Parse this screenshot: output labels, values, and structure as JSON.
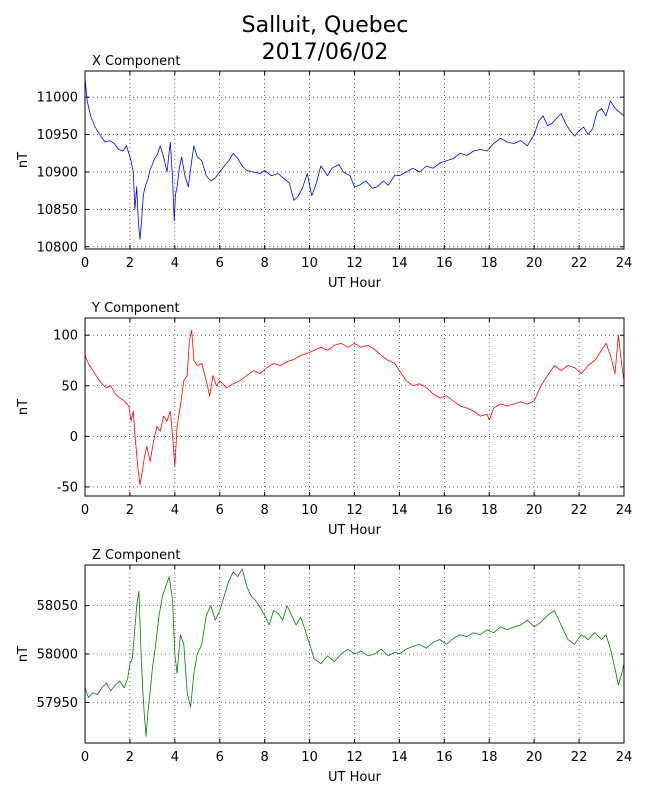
{
  "title_line1": "Salluit, Quebec",
  "title_line2": "2017/06/02",
  "chart_data": [
    {
      "type": "line",
      "title": "X Component",
      "xlabel": "UT Hour",
      "ylabel": "nT",
      "xlim": [
        0,
        24
      ],
      "ylim": [
        10797,
        11035
      ],
      "xticks": [
        0,
        2,
        4,
        6,
        8,
        10,
        12,
        14,
        16,
        18,
        20,
        22,
        24
      ],
      "yticks": [
        10800,
        10850,
        10900,
        10950,
        11000
      ],
      "grid": true,
      "color": "#0000ff",
      "series": [
        {
          "x": [
            0,
            0.1,
            0.25,
            0.45,
            0.7,
            0.9,
            1.1,
            1.3,
            1.5,
            1.7,
            1.85,
            1.95,
            2.05,
            2.15,
            2.22,
            2.3,
            2.38,
            2.45,
            2.52,
            2.6,
            2.7,
            2.8,
            2.9,
            3.0,
            3.1,
            3.2,
            3.35,
            3.5,
            3.65,
            3.8,
            3.9,
            3.97,
            4.03,
            4.1,
            4.2,
            4.3,
            4.45,
            4.6,
            4.75,
            4.85,
            5.0,
            5.2,
            5.4,
            5.6,
            5.8,
            6.0,
            6.2,
            6.4,
            6.6,
            6.8,
            7.0,
            7.2,
            7.5,
            7.8,
            8.0,
            8.3,
            8.6,
            8.9,
            9.1,
            9.3,
            9.5,
            9.7,
            9.9,
            10.1,
            10.3,
            10.5,
            10.8,
            11.0,
            11.3,
            11.5,
            11.8,
            12.0,
            12.2,
            12.5,
            12.8,
            13.0,
            13.3,
            13.5,
            13.8,
            14.0,
            14.3,
            14.6,
            14.9,
            15.2,
            15.5,
            15.8,
            16.1,
            16.4,
            16.7,
            17.0,
            17.3,
            17.6,
            17.9,
            18.2,
            18.5,
            18.8,
            19.1,
            19.4,
            19.7,
            20.0,
            20.2,
            20.4,
            20.6,
            20.8,
            21.0,
            21.2,
            21.4,
            21.6,
            21.8,
            22.0,
            22.2,
            22.4,
            22.6,
            22.8,
            23.0,
            23.2,
            23.4,
            23.6,
            23.8,
            24.0
          ],
          "y": [
            11025,
            10995,
            10975,
            10960,
            10948,
            10940,
            10942,
            10938,
            10930,
            10928,
            10935,
            10925,
            10915,
            10900,
            10850,
            10880,
            10830,
            10810,
            10835,
            10870,
            10882,
            10890,
            10903,
            10910,
            10918,
            10922,
            10935,
            10920,
            10900,
            10940,
            10890,
            10835,
            10870,
            10880,
            10905,
            10920,
            10895,
            10880,
            10915,
            10935,
            10920,
            10915,
            10895,
            10888,
            10892,
            10900,
            10908,
            10915,
            10925,
            10918,
            10908,
            10902,
            10900,
            10898,
            10902,
            10895,
            10898,
            10890,
            10885,
            10862,
            10868,
            10880,
            10898,
            10868,
            10885,
            10908,
            10895,
            10905,
            10910,
            10900,
            10895,
            10880,
            10882,
            10888,
            10878,
            10880,
            10888,
            10882,
            10896,
            10895,
            10900,
            10905,
            10900,
            10908,
            10905,
            10912,
            10915,
            10918,
            10925,
            10922,
            10928,
            10930,
            10928,
            10938,
            10945,
            10940,
            10938,
            10942,
            10935,
            10950,
            10968,
            10975,
            10962,
            10965,
            10972,
            10978,
            10965,
            10955,
            10948,
            10955,
            10960,
            10950,
            10958,
            10980,
            10985,
            10975,
            10995,
            10985,
            10980,
            10975
          ]
        }
      ]
    },
    {
      "type": "line",
      "title": "Y Component",
      "xlabel": "UT Hour",
      "ylabel": "nT",
      "xlim": [
        0,
        24
      ],
      "ylim": [
        -59,
        117
      ],
      "xticks": [
        0,
        2,
        4,
        6,
        8,
        10,
        12,
        14,
        16,
        18,
        20,
        22,
        24
      ],
      "yticks": [
        -50,
        0,
        50,
        100
      ],
      "grid": true,
      "color": "#ff0000",
      "series": [
        {
          "x": [
            0,
            0.15,
            0.35,
            0.55,
            0.75,
            0.95,
            1.15,
            1.35,
            1.55,
            1.75,
            1.95,
            2.05,
            2.15,
            2.25,
            2.35,
            2.45,
            2.55,
            2.65,
            2.75,
            2.9,
            3.05,
            3.2,
            3.35,
            3.5,
            3.65,
            3.8,
            3.9,
            4.0,
            4.1,
            4.25,
            4.4,
            4.55,
            4.65,
            4.75,
            4.85,
            5.0,
            5.2,
            5.4,
            5.55,
            5.7,
            5.85,
            6.0,
            6.3,
            6.6,
            6.9,
            7.2,
            7.5,
            7.8,
            8.1,
            8.4,
            8.7,
            9.0,
            9.3,
            9.6,
            9.9,
            10.2,
            10.5,
            10.8,
            11.1,
            11.4,
            11.7,
            12.0,
            12.3,
            12.6,
            12.9,
            13.2,
            13.5,
            13.8,
            14.0,
            14.3,
            14.6,
            14.9,
            15.2,
            15.5,
            15.8,
            16.1,
            16.4,
            16.7,
            17.0,
            17.3,
            17.6,
            17.9,
            18.0,
            18.2,
            18.5,
            18.8,
            19.1,
            19.4,
            19.7,
            20.0,
            20.3,
            20.6,
            20.9,
            21.2,
            21.5,
            21.8,
            22.1,
            22.4,
            22.7,
            23.0,
            23.2,
            23.4,
            23.6,
            23.75,
            23.9,
            24.0
          ],
          "y": [
            80,
            72,
            65,
            58,
            52,
            48,
            50,
            42,
            38,
            35,
            30,
            15,
            25,
            -5,
            -30,
            -48,
            -35,
            -20,
            -10,
            -25,
            -5,
            10,
            5,
            20,
            15,
            25,
            0,
            -30,
            10,
            30,
            55,
            60,
            95,
            105,
            75,
            70,
            72,
            55,
            40,
            60,
            50,
            55,
            48,
            52,
            55,
            60,
            65,
            62,
            68,
            72,
            70,
            74,
            76,
            80,
            82,
            85,
            88,
            85,
            90,
            92,
            88,
            92,
            88,
            90,
            86,
            80,
            75,
            72,
            65,
            55,
            50,
            52,
            48,
            42,
            38,
            40,
            35,
            30,
            28,
            25,
            20,
            22,
            16,
            28,
            32,
            30,
            32,
            34,
            32,
            35,
            50,
            60,
            70,
            65,
            70,
            68,
            62,
            70,
            75,
            85,
            92,
            80,
            62,
            100,
            70,
            55
          ]
        }
      ]
    },
    {
      "type": "line",
      "title": "Z Component",
      "xlabel": "UT Hour",
      "ylabel": "nT",
      "xlim": [
        0,
        24
      ],
      "ylim": [
        57908,
        58092
      ],
      "xticks": [
        0,
        2,
        4,
        6,
        8,
        10,
        12,
        14,
        16,
        18,
        20,
        22,
        24
      ],
      "yticks": [
        57950,
        58000,
        58050
      ],
      "grid": true,
      "color": "#007f00",
      "series": [
        {
          "x": [
            0,
            0.15,
            0.35,
            0.55,
            0.75,
            0.95,
            1.15,
            1.35,
            1.55,
            1.75,
            1.9,
            2.0,
            2.1,
            2.2,
            2.3,
            2.4,
            2.5,
            2.58,
            2.65,
            2.72,
            2.8,
            2.9,
            3.0,
            3.15,
            3.3,
            3.45,
            3.6,
            3.75,
            3.9,
            4.0,
            4.1,
            4.25,
            4.4,
            4.55,
            4.7,
            4.85,
            5.0,
            5.2,
            5.4,
            5.6,
            5.8,
            6.0,
            6.2,
            6.4,
            6.6,
            6.8,
            7.0,
            7.2,
            7.4,
            7.6,
            7.8,
            8.0,
            8.2,
            8.4,
            8.6,
            8.8,
            9.0,
            9.2,
            9.4,
            9.6,
            9.8,
            10.0,
            10.2,
            10.5,
            10.8,
            11.1,
            11.4,
            11.7,
            12.0,
            12.3,
            12.6,
            12.9,
            13.2,
            13.5,
            13.8,
            14.0,
            14.3,
            14.6,
            14.9,
            15.2,
            15.5,
            15.8,
            16.1,
            16.4,
            16.7,
            17.0,
            17.3,
            17.6,
            17.9,
            18.2,
            18.5,
            18.8,
            19.1,
            19.4,
            19.7,
            20.0,
            20.3,
            20.6,
            20.9,
            21.2,
            21.5,
            21.8,
            22.1,
            22.4,
            22.7,
            23.0,
            23.2,
            23.4,
            23.6,
            23.75,
            23.9,
            24.0
          ],
          "y": [
            57965,
            57955,
            57960,
            57958,
            57965,
            57970,
            57962,
            57968,
            57972,
            57965,
            57975,
            57990,
            57995,
            58020,
            58050,
            58065,
            58000,
            57960,
            57935,
            57915,
            57940,
            57960,
            57985,
            58010,
            58040,
            58060,
            58070,
            58080,
            58055,
            58000,
            57980,
            58020,
            58010,
            57960,
            57945,
            57980,
            58000,
            58010,
            58040,
            58050,
            58035,
            58045,
            58060,
            58075,
            58085,
            58080,
            58088,
            58070,
            58060,
            58055,
            58048,
            58040,
            58030,
            58045,
            58042,
            58035,
            58050,
            58040,
            58030,
            58038,
            58025,
            58010,
            57995,
            57990,
            57998,
            57992,
            58000,
            58005,
            58000,
            58003,
            57998,
            58000,
            58005,
            57998,
            58002,
            58000,
            58005,
            58008,
            58010,
            58006,
            58012,
            58015,
            58010,
            58016,
            58020,
            58018,
            58022,
            58020,
            58025,
            58022,
            58028,
            58025,
            58028,
            58030,
            58035,
            58028,
            58033,
            58040,
            58045,
            58030,
            58015,
            58010,
            58020,
            58015,
            58022,
            58015,
            58020,
            58005,
            57985,
            57968,
            57980,
            57990
          ]
        }
      ]
    }
  ]
}
